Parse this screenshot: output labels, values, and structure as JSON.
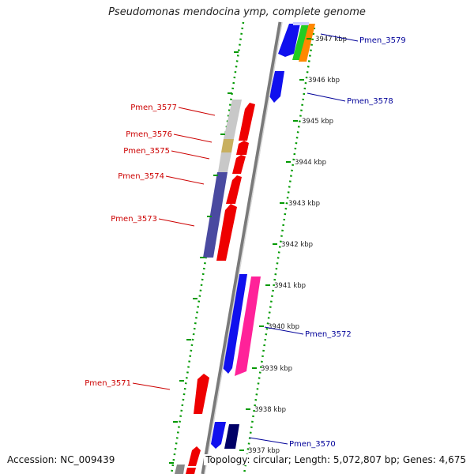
{
  "title": "Pseudomonas mendocina ymp, complete genome",
  "accession": "Accession: NC_009439",
  "topology": "Topology: circular; Length: 5,072,807 bp; Genes: 4,675",
  "colors": {
    "reverse_label": "#cc0000",
    "forward_label": "#000099",
    "backbone": "#888888",
    "tick": "#009900"
  },
  "ruler": [
    {
      "label": "3947 kbp"
    },
    {
      "label": "3946 kbp"
    },
    {
      "label": "3945 kbp"
    },
    {
      "label": "3944 kbp"
    },
    {
      "label": "3943 kbp"
    },
    {
      "label": "3942 kbp"
    },
    {
      "label": "3941 kbp"
    },
    {
      "label": "3940 kbp"
    },
    {
      "label": "3939 kbp"
    },
    {
      "label": "3938 kbp"
    },
    {
      "label": "3937 kbp"
    }
  ],
  "genes": [
    {
      "name": "Pmen_3579",
      "strand": "forward"
    },
    {
      "name": "Pmen_3578",
      "strand": "forward"
    },
    {
      "name": "Pmen_3577",
      "strand": "reverse"
    },
    {
      "name": "Pmen_3576",
      "strand": "reverse"
    },
    {
      "name": "Pmen_3575",
      "strand": "reverse"
    },
    {
      "name": "Pmen_3574",
      "strand": "reverse"
    },
    {
      "name": "Pmen_3573",
      "strand": "reverse"
    },
    {
      "name": "Pmen_3572",
      "strand": "forward"
    },
    {
      "name": "Pmen_3571",
      "strand": "reverse"
    },
    {
      "name": "Pmen_3570",
      "strand": "forward"
    }
  ]
}
